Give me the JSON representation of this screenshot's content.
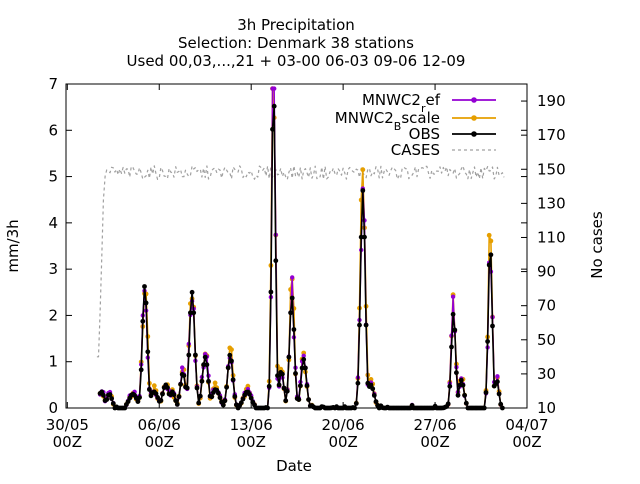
{
  "chart_data": {
    "type": "line",
    "title_lines": [
      "3h Precipitation",
      "Selection: Denmark     38 stations",
      "Used 00,03,...,21 + 03-00 06-03 09-06 12-09"
    ],
    "xlabel": "Date",
    "ylabel": "mm/3h",
    "y2label": "No cases",
    "x_days_range": [
      0,
      34
    ],
    "ylim": [
      0,
      7
    ],
    "y2lim": [
      10,
      200
    ],
    "x_ticks": [
      {
        "day": 0,
        "line1": "30/05",
        "line2": "00Z"
      },
      {
        "day": 7,
        "line1": "06/06",
        "line2": "00Z"
      },
      {
        "day": 14,
        "line1": "13/06",
        "line2": "00Z"
      },
      {
        "day": 21,
        "line1": "20/06",
        "line2": "00Z"
      },
      {
        "day": 28,
        "line1": "27/06",
        "line2": "00Z"
      },
      {
        "day": 35,
        "line1": "04/07",
        "line2": "00Z"
      }
    ],
    "y_ticks": [
      "0",
      "1",
      "2",
      "3",
      "4",
      "5",
      "6",
      "7"
    ],
    "y2_ticks": [
      "10",
      "30",
      "50",
      "70",
      "90",
      "110",
      "130",
      "150",
      "170",
      "190"
    ],
    "legend": {
      "placement": "top-right",
      "entries": [
        {
          "key": "mnwc2_ref",
          "base": "MNWC2",
          "sub": "r",
          "tail": "ef"
        },
        {
          "key": "mnwc2_bscale",
          "base": "MNWC2",
          "sub": "B",
          "tail": "scale"
        },
        {
          "key": "obs",
          "base": "OBS",
          "sub": "",
          "tail": ""
        },
        {
          "key": "cases",
          "base": "CASES",
          "sub": "",
          "tail": ""
        }
      ]
    },
    "colors": {
      "mnwc2_ref": "#9400d3",
      "mnwc2_bscale": "#e69f00",
      "obs": "#000000",
      "cases": "#a0a0a0"
    },
    "events": [
      {
        "day": 2.6,
        "peak": 0.35,
        "w": 0.22
      },
      {
        "day": 3.2,
        "peak": 0.3,
        "w": 0.2
      },
      {
        "day": 5.0,
        "peak": 0.3,
        "w": 0.3
      },
      {
        "day": 5.9,
        "peak": 2.65,
        "w": 0.18
      },
      {
        "day": 6.6,
        "peak": 0.35,
        "w": 0.3
      },
      {
        "day": 7.5,
        "peak": 0.5,
        "w": 0.25
      },
      {
        "day": 8.0,
        "peak": 0.35,
        "w": 0.2
      },
      {
        "day": 8.8,
        "peak": 0.75,
        "w": 0.2
      },
      {
        "day": 9.5,
        "peak": 2.5,
        "w": 0.2
      },
      {
        "day": 10.5,
        "peak": 1.1,
        "w": 0.22
      },
      {
        "day": 11.3,
        "peak": 0.4,
        "w": 0.3
      },
      {
        "day": 12.4,
        "peak": 1.15,
        "w": 0.2
      },
      {
        "day": 13.7,
        "peak": 0.35,
        "w": 0.3
      },
      {
        "day": 15.7,
        "peak": 6.95,
        "w": 0.14
      },
      {
        "day": 16.3,
        "peak": 0.8,
        "w": 0.18
      },
      {
        "day": 17.1,
        "peak": 2.4,
        "w": 0.18
      },
      {
        "day": 18.0,
        "peak": 1.05,
        "w": 0.2
      },
      {
        "day": 22.5,
        "peak": 4.7,
        "w": 0.18
      },
      {
        "day": 23.1,
        "peak": 0.5,
        "w": 0.25
      },
      {
        "day": 29.4,
        "peak": 2.05,
        "w": 0.16
      },
      {
        "day": 30.0,
        "peak": 0.6,
        "w": 0.2
      },
      {
        "day": 32.2,
        "peak": 3.5,
        "w": 0.15
      },
      {
        "day": 32.7,
        "peak": 0.6,
        "w": 0.15
      }
    ]
  }
}
